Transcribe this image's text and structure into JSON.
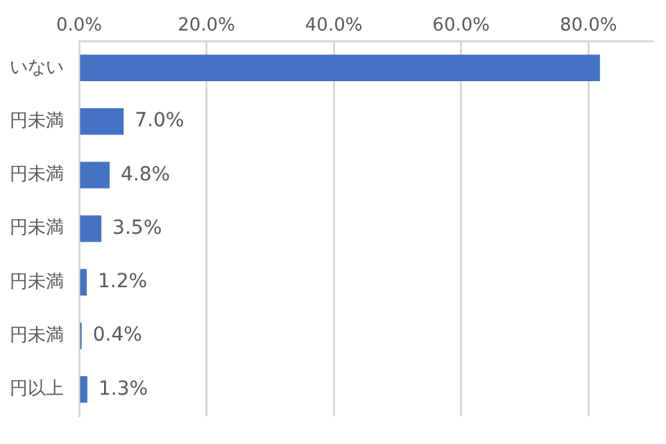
{
  "chart_data": {
    "type": "bar",
    "orientation": "horizontal",
    "categories": [
      "いない",
      "円未満",
      "円未満",
      "円未満",
      "円未満",
      "円未満",
      "円以上"
    ],
    "values": [
      81.8,
      7.0,
      4.8,
      3.5,
      1.2,
      0.4,
      1.3
    ],
    "value_labels": [
      null,
      "7.0%",
      "4.8%",
      "3.5%",
      "1.2%",
      "0.4%",
      "1.3%"
    ],
    "color": "#4472c4",
    "xlim": [
      0,
      90
    ],
    "xticks": [
      {
        "value": 0,
        "label": "0.0%"
      },
      {
        "value": 20,
        "label": "20.0%"
      },
      {
        "value": 40,
        "label": "40.0%"
      },
      {
        "value": 60,
        "label": "60.0%"
      },
      {
        "value": 80,
        "label": "80.0%"
      }
    ],
    "grid": "x",
    "legend": false
  }
}
